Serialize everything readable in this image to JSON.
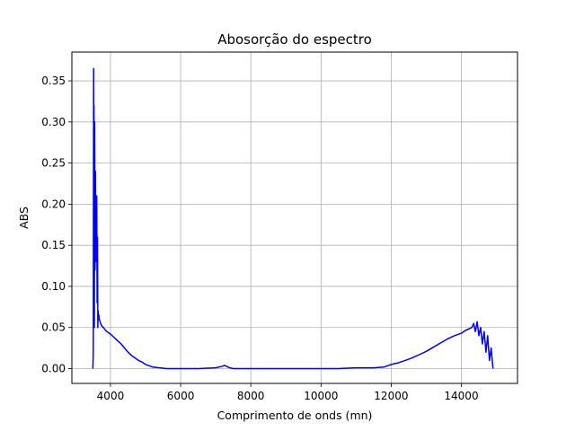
{
  "chart_data": {
    "type": "line",
    "title": "Abosorção do espectro",
    "xlabel": "Comprimento de onds (mn)",
    "ylabel": "ABS",
    "xlim": [
      2900,
      15600
    ],
    "ylim": [
      -0.018,
      0.385
    ],
    "x_ticks": [
      4000,
      6000,
      8000,
      10000,
      12000,
      14000
    ],
    "y_ticks": [
      0.0,
      0.05,
      0.1,
      0.15,
      0.2,
      0.25,
      0.3,
      0.35
    ],
    "x_tick_labels": [
      "4000",
      "6000",
      "8000",
      "10000",
      "12000",
      "14000"
    ],
    "y_tick_labels": [
      "0.00",
      "0.05",
      "0.10",
      "0.15",
      "0.20",
      "0.25",
      "0.30",
      "0.35"
    ],
    "grid": true,
    "series": [
      {
        "color": "#0000ff",
        "x": [
          3500,
          3510,
          3520,
          3525,
          3530,
          3540,
          3550,
          3560,
          3570,
          3580,
          3590,
          3600,
          3610,
          3620,
          3630,
          3640,
          3650,
          3660,
          3670,
          3680,
          3700,
          3720,
          3750,
          3800,
          3850,
          3900,
          4000,
          4100,
          4200,
          4300,
          4400,
          4500,
          4600,
          4700,
          4800,
          4900,
          5000,
          5200,
          5400,
          5600,
          5800,
          6000,
          6500,
          7000,
          7100,
          7200,
          7250,
          7300,
          7400,
          7500,
          8000,
          8500,
          9000,
          9500,
          10000,
          10500,
          11000,
          11500,
          11800,
          12000,
          12200,
          12400,
          12600,
          12800,
          13000,
          13200,
          13400,
          13600,
          13800,
          14000,
          14100,
          14200,
          14300,
          14350,
          14400,
          14450,
          14500,
          14550,
          14600,
          14650,
          14700,
          14750,
          14800,
          14850,
          14900
        ],
        "y": [
          0.0,
          0.02,
          0.365,
          0.1,
          0.32,
          0.05,
          0.3,
          0.12,
          0.24,
          0.15,
          0.2,
          0.13,
          0.21,
          0.08,
          0.16,
          0.05,
          0.07,
          0.06,
          0.065,
          0.06,
          0.058,
          0.055,
          0.052,
          0.05,
          0.047,
          0.045,
          0.042,
          0.038,
          0.034,
          0.03,
          0.025,
          0.02,
          0.016,
          0.013,
          0.01,
          0.008,
          0.005,
          0.002,
          0.001,
          0.0,
          0.0,
          0.0,
          0.0,
          0.001,
          0.002,
          0.003,
          0.004,
          0.003,
          0.001,
          0.0,
          0.0,
          0.0,
          0.0,
          0.0,
          0.0,
          0.0,
          0.001,
          0.001,
          0.002,
          0.005,
          0.007,
          0.01,
          0.013,
          0.017,
          0.021,
          0.026,
          0.031,
          0.036,
          0.04,
          0.043,
          0.046,
          0.048,
          0.05,
          0.055,
          0.045,
          0.057,
          0.04,
          0.05,
          0.03,
          0.045,
          0.02,
          0.04,
          0.01,
          0.025,
          0.0
        ]
      }
    ]
  }
}
